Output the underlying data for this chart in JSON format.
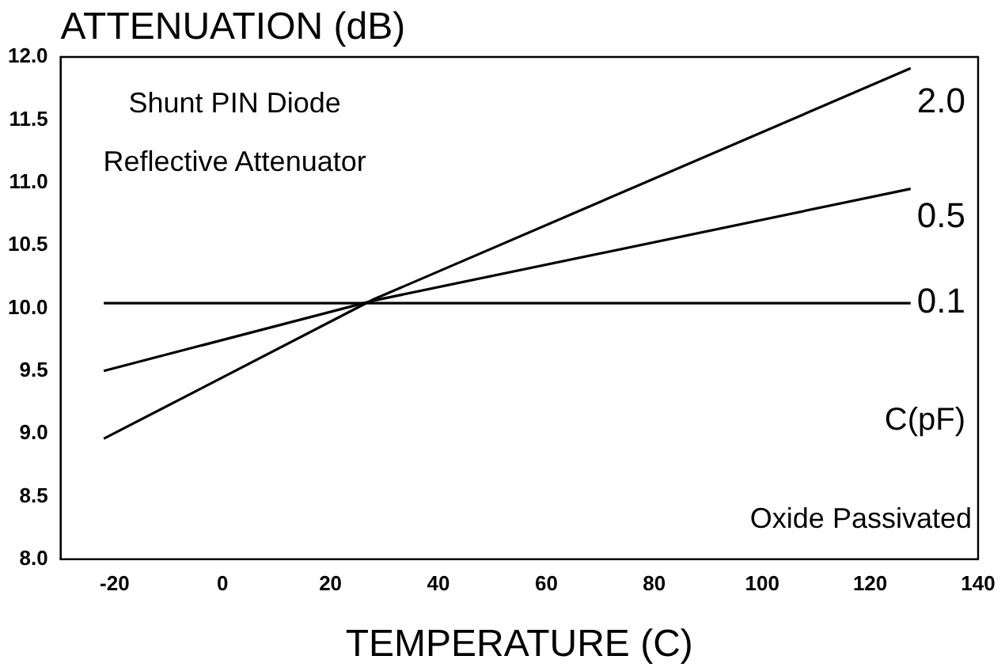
{
  "chart_data": {
    "type": "line",
    "xlabel": "TEMPERATURE (C)",
    "ylabel": "ATTENUATION (dB)",
    "legend_title": "C(pF)",
    "annotations": [
      "Shunt PIN Diode\nReflective Attenuator",
      "Oxide Passivated"
    ],
    "x": [
      -22,
      28,
      127.5
    ],
    "series": [
      {
        "name": "2.0",
        "color": "#000000",
        "values": [
          8.96,
          10.07,
          11.91
        ]
      },
      {
        "name": "0.5",
        "color": "#000000",
        "values": [
          9.5,
          10.06,
          10.95
        ]
      },
      {
        "name": "0.1",
        "color": "#000000",
        "values": [
          10.04,
          10.04,
          10.04
        ]
      }
    ],
    "xlim": [
      -30,
      140
    ],
    "xticks": [
      -20,
      0,
      20,
      40,
      60,
      80,
      100,
      120,
      140
    ],
    "ylim": [
      8,
      12
    ],
    "yticks": [
      {
        "value": 8,
        "label": "8.0"
      },
      {
        "value": 8.5,
        "label": "8.5"
      },
      {
        "value": 9,
        "label": "9.0"
      },
      {
        "value": 9.5,
        "label": "9.5"
      },
      {
        "value": 10,
        "label": "10.0"
      },
      {
        "value": 10.5,
        "label": "10.5"
      },
      {
        "value": 11,
        "label": "11.0"
      },
      {
        "value": 11.5,
        "label": "11.5"
      },
      {
        "value": 12,
        "label": "12.0"
      }
    ],
    "grid": false,
    "legend": "right",
    "marker": "none",
    "line_style": "solid"
  }
}
